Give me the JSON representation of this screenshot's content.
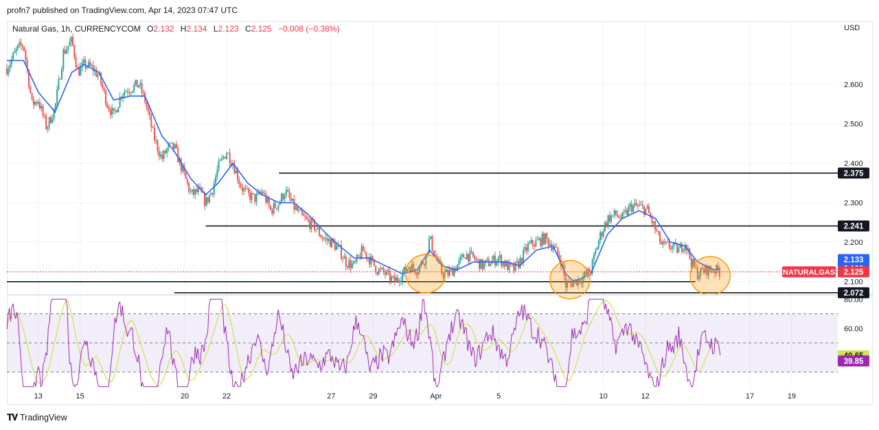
{
  "header": {
    "published": "profn7 published on TradingView.com, Apr 14, 2023 07:47 UTC"
  },
  "legend": {
    "symbol": "Natural Gas, 1h, CURRENCYCOM",
    "o_label": "O",
    "o_value": "2.132",
    "h_label": "H",
    "h_value": "2.134",
    "l_label": "L",
    "l_value": "2.123",
    "c_label": "C",
    "c_value": "2.125",
    "change": "−0.008 (−0.38%)"
  },
  "currency": "USD",
  "footer": {
    "brand": "TradingView",
    "logo_icon": "tradingview-logo-icon"
  },
  "colors": {
    "up": "#26a69a",
    "down": "#ef5350",
    "ma": "#2962ff",
    "rsi": "#9c27b0",
    "rsi_ma": "#d4e157",
    "rsi_band": "#7e57c2",
    "level": "#000000",
    "circle": "#ff9800",
    "last_price": "#f23645",
    "price_tag_dark": "#131722",
    "price_tag_blue": "#2962ff"
  },
  "chart_data": {
    "type": "candlestick",
    "symbol": "Natural Gas",
    "interval": "1h",
    "y_range": [
      2.07,
      2.73
    ],
    "y_ticks": [
      "2.600",
      "2.500",
      "2.400",
      "2.300",
      "2.200",
      "2.100"
    ],
    "x_ticks": [
      "13",
      "15",
      "20",
      "22",
      "27",
      "29",
      "Apr",
      "5",
      "10",
      "12",
      "17",
      "19"
    ],
    "x_tick_days": [
      13,
      15,
      20,
      22,
      27,
      29,
      32,
      35,
      40,
      42,
      47,
      49
    ],
    "x_day_range": [
      11.5,
      51.2
    ],
    "close_path": [
      [
        11.5,
        2.64
      ],
      [
        12.0,
        2.69
      ],
      [
        12.3,
        2.7
      ],
      [
        12.7,
        2.55
      ],
      [
        13.0,
        2.56
      ],
      [
        13.4,
        2.49
      ],
      [
        13.8,
        2.54
      ],
      [
        14.2,
        2.68
      ],
      [
        14.6,
        2.71
      ],
      [
        14.9,
        2.63
      ],
      [
        15.2,
        2.65
      ],
      [
        15.6,
        2.64
      ],
      [
        15.9,
        2.62
      ],
      [
        16.3,
        2.55
      ],
      [
        16.6,
        2.52
      ],
      [
        17.0,
        2.58
      ],
      [
        17.4,
        2.59
      ],
      [
        17.8,
        2.6
      ],
      [
        18.1,
        2.56
      ],
      [
        18.5,
        2.47
      ],
      [
        18.9,
        2.41
      ],
      [
        19.2,
        2.44
      ],
      [
        19.5,
        2.44
      ],
      [
        19.9,
        2.38
      ],
      [
        20.3,
        2.32
      ],
      [
        20.7,
        2.33
      ],
      [
        21.0,
        2.3
      ],
      [
        21.3,
        2.33
      ],
      [
        21.6,
        2.39
      ],
      [
        22.0,
        2.43
      ],
      [
        22.3,
        2.4
      ],
      [
        22.7,
        2.34
      ],
      [
        23.0,
        2.32
      ],
      [
        23.4,
        2.31
      ],
      [
        23.7,
        2.33
      ],
      [
        24.1,
        2.28
      ],
      [
        24.5,
        2.3
      ],
      [
        24.8,
        2.33
      ],
      [
        25.2,
        2.29
      ],
      [
        25.5,
        2.27
      ],
      [
        25.9,
        2.25
      ],
      [
        26.2,
        2.24
      ],
      [
        26.6,
        2.21
      ],
      [
        27.0,
        2.2
      ],
      [
        27.4,
        2.18
      ],
      [
        27.7,
        2.15
      ],
      [
        28.1,
        2.14
      ],
      [
        28.5,
        2.18
      ],
      [
        28.8,
        2.16
      ],
      [
        29.2,
        2.13
      ],
      [
        29.6,
        2.12
      ],
      [
        30.0,
        2.1
      ],
      [
        30.4,
        2.12
      ],
      [
        30.7,
        2.14
      ],
      [
        31.1,
        2.13
      ],
      [
        31.5,
        2.16
      ],
      [
        31.7,
        2.21
      ],
      [
        32.0,
        2.16
      ],
      [
        32.3,
        2.12
      ],
      [
        32.6,
        2.12
      ],
      [
        33.0,
        2.14
      ],
      [
        33.4,
        2.17
      ],
      [
        33.8,
        2.16
      ],
      [
        34.2,
        2.14
      ],
      [
        34.6,
        2.15
      ],
      [
        35.0,
        2.16
      ],
      [
        35.4,
        2.14
      ],
      [
        35.7,
        2.13
      ],
      [
        36.0,
        2.15
      ],
      [
        36.4,
        2.19
      ],
      [
        36.8,
        2.2
      ],
      [
        37.2,
        2.21
      ],
      [
        37.6,
        2.19
      ],
      [
        38.0,
        2.15
      ],
      [
        38.2,
        2.09
      ],
      [
        38.6,
        2.1
      ],
      [
        39.0,
        2.11
      ],
      [
        39.4,
        2.13
      ],
      [
        39.8,
        2.21
      ],
      [
        40.2,
        2.26
      ],
      [
        40.6,
        2.27
      ],
      [
        40.9,
        2.26
      ],
      [
        41.3,
        2.29
      ],
      [
        41.7,
        2.29
      ],
      [
        42.1,
        2.28
      ],
      [
        42.5,
        2.23
      ],
      [
        42.8,
        2.19
      ],
      [
        43.2,
        2.19
      ],
      [
        43.6,
        2.18
      ],
      [
        43.9,
        2.2
      ],
      [
        44.2,
        2.15
      ],
      [
        44.5,
        2.12
      ],
      [
        44.9,
        2.13
      ],
      [
        45.3,
        2.13
      ],
      [
        45.6,
        2.125
      ]
    ],
    "moving_average_path": [
      [
        11.5,
        2.66
      ],
      [
        12.3,
        2.66
      ],
      [
        13.0,
        2.58
      ],
      [
        13.8,
        2.53
      ],
      [
        14.6,
        2.63
      ],
      [
        15.2,
        2.65
      ],
      [
        15.9,
        2.63
      ],
      [
        16.6,
        2.56
      ],
      [
        17.4,
        2.57
      ],
      [
        18.1,
        2.57
      ],
      [
        18.9,
        2.47
      ],
      [
        19.5,
        2.43
      ],
      [
        20.3,
        2.36
      ],
      [
        21.0,
        2.32
      ],
      [
        21.6,
        2.35
      ],
      [
        22.3,
        2.4
      ],
      [
        23.0,
        2.35
      ],
      [
        23.7,
        2.32
      ],
      [
        24.5,
        2.3
      ],
      [
        25.2,
        2.3
      ],
      [
        25.9,
        2.27
      ],
      [
        26.6,
        2.23
      ],
      [
        27.4,
        2.19
      ],
      [
        28.1,
        2.16
      ],
      [
        28.8,
        2.16
      ],
      [
        29.6,
        2.14
      ],
      [
        30.4,
        2.12
      ],
      [
        31.1,
        2.13
      ],
      [
        31.7,
        2.18
      ],
      [
        32.3,
        2.14
      ],
      [
        33.0,
        2.13
      ],
      [
        33.8,
        2.15
      ],
      [
        34.6,
        2.15
      ],
      [
        35.4,
        2.15
      ],
      [
        36.0,
        2.14
      ],
      [
        36.8,
        2.18
      ],
      [
        37.6,
        2.19
      ],
      [
        38.2,
        2.12
      ],
      [
        38.6,
        2.1
      ],
      [
        39.4,
        2.12
      ],
      [
        40.2,
        2.22
      ],
      [
        40.9,
        2.26
      ],
      [
        41.7,
        2.28
      ],
      [
        42.5,
        2.26
      ],
      [
        43.2,
        2.2
      ],
      [
        43.9,
        2.19
      ],
      [
        44.5,
        2.15
      ],
      [
        45.3,
        2.13
      ],
      [
        45.6,
        2.133
      ]
    ],
    "horizontal_levels": [
      {
        "price": 2.375,
        "from_day": 24.5,
        "label": "2.375"
      },
      {
        "price": 2.241,
        "from_day": 21.0,
        "label": "2.241"
      },
      {
        "price": 2.1,
        "from_day": 11.5,
        "to_day": 44.4,
        "label": ""
      },
      {
        "price": 2.072,
        "from_day": 19.5,
        "label": "2.072"
      }
    ],
    "highlight_circles": [
      {
        "day": 31.5,
        "price": 2.12
      },
      {
        "day": 38.4,
        "price": 2.105
      },
      {
        "day": 45.1,
        "price": 2.115
      }
    ],
    "price_tags": [
      {
        "price": 2.241,
        "label": "2.241",
        "style": "dark"
      },
      {
        "price": 2.375,
        "label": "2.375",
        "style": "dark"
      },
      {
        "price": 2.072,
        "label": "2.072",
        "style": "dark"
      },
      {
        "price": 2.156,
        "label": "2.133",
        "style": "blue"
      },
      {
        "price": 2.133,
        "label": "2.133",
        "style": "blue"
      },
      {
        "price": 2.125,
        "label": "2.125",
        "style": "red",
        "name": "NATURALGAS"
      }
    ],
    "last_price": 2.125,
    "rsi": {
      "y_range": [
        18,
        82
      ],
      "y_ticks": [
        "80.00",
        "60.00"
      ],
      "band": [
        30,
        70
      ],
      "mid": 50,
      "value": "39.85",
      "ma_value": "40.65"
    }
  }
}
